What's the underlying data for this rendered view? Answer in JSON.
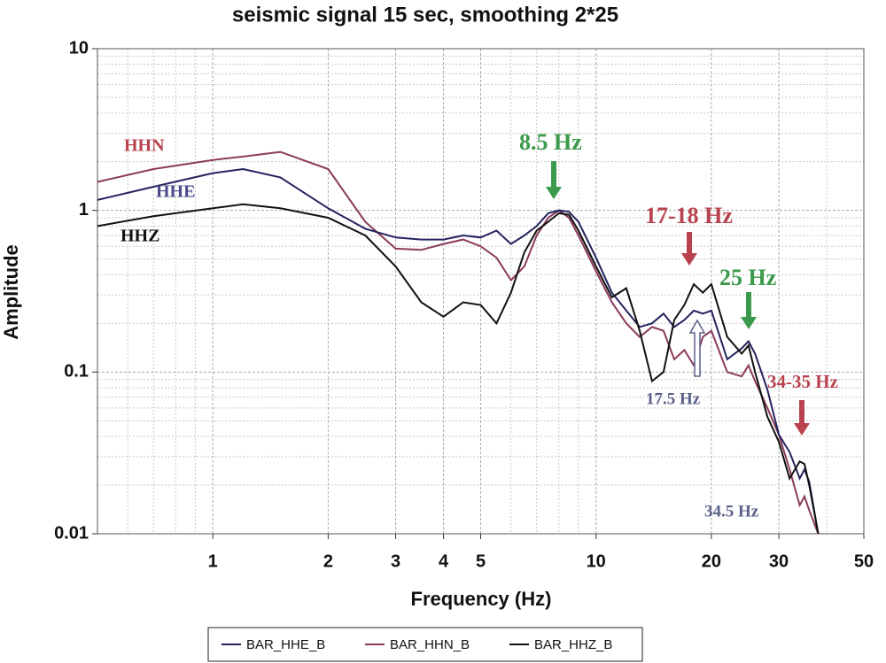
{
  "chart_data": {
    "type": "line",
    "title": "seismic signal 15 sec, smoothing 2*25",
    "xlabel": "Frequency (Hz)",
    "ylabel": "Amplitude",
    "xscale": "log",
    "yscale": "log",
    "grid": true,
    "xlim": [
      0.5,
      50
    ],
    "ylim": [
      0.01,
      10
    ],
    "xticks": [
      1,
      2,
      3,
      4,
      5,
      10,
      20,
      30,
      50
    ],
    "yticks": [
      0.01,
      0.1,
      1,
      10
    ],
    "xminorticks": [
      0.6,
      0.7,
      0.8,
      0.9,
      6,
      7,
      8,
      9,
      40
    ],
    "yminorticks": [
      0.02,
      0.03,
      0.04,
      0.05,
      0.06,
      0.07,
      0.08,
      0.09,
      0.2,
      0.3,
      0.4,
      0.5,
      0.6,
      0.7,
      0.8,
      0.9,
      2,
      3,
      4,
      5,
      6,
      7,
      8,
      9
    ],
    "x": [
      0.5,
      0.7,
      1,
      1.2,
      1.5,
      2,
      2.5,
      3,
      3.5,
      4,
      4.5,
      5,
      5.5,
      6,
      6.5,
      7,
      7.5,
      8,
      8.5,
      9,
      10,
      11,
      12,
      13,
      14,
      15,
      16,
      17,
      18,
      19,
      20,
      22,
      24,
      25,
      26,
      28,
      30,
      32,
      34,
      35,
      36,
      38
    ],
    "series": [
      {
        "name": "BAR_HHE_B",
        "color": "#23235e",
        "values": [
          1.16,
          1.4,
          1.7,
          1.8,
          1.6,
          1.03,
          0.77,
          0.68,
          0.66,
          0.66,
          0.7,
          0.68,
          0.75,
          0.62,
          0.7,
          0.8,
          0.96,
          1.0,
          0.98,
          0.85,
          0.51,
          0.31,
          0.24,
          0.19,
          0.2,
          0.23,
          0.19,
          0.21,
          0.24,
          0.23,
          0.24,
          0.12,
          0.14,
          0.155,
          0.13,
          0.078,
          0.041,
          0.032,
          0.022,
          0.025,
          0.021,
          0.01
        ]
      },
      {
        "name": "BAR_HHN_B",
        "color": "#8b3a5a",
        "values": [
          1.5,
          1.8,
          2.05,
          2.15,
          2.3,
          1.8,
          0.85,
          0.58,
          0.57,
          0.62,
          0.66,
          0.6,
          0.51,
          0.37,
          0.45,
          0.7,
          0.9,
          1.0,
          0.9,
          0.7,
          0.42,
          0.27,
          0.2,
          0.165,
          0.19,
          0.18,
          0.12,
          0.137,
          0.11,
          0.165,
          0.18,
          0.1,
          0.094,
          0.11,
          0.088,
          0.06,
          0.041,
          0.025,
          0.015,
          0.017,
          0.014,
          0.01
        ]
      },
      {
        "name": "BAR_HHZ_B",
        "color": "#111111",
        "values": [
          0.8,
          0.92,
          1.03,
          1.09,
          1.03,
          0.9,
          0.7,
          0.45,
          0.27,
          0.22,
          0.27,
          0.26,
          0.2,
          0.31,
          0.55,
          0.75,
          0.85,
          0.96,
          0.94,
          0.75,
          0.45,
          0.29,
          0.33,
          0.18,
          0.088,
          0.1,
          0.21,
          0.26,
          0.35,
          0.31,
          0.35,
          0.165,
          0.13,
          0.146,
          0.1,
          0.053,
          0.037,
          0.022,
          0.028,
          0.027,
          0.02,
          0.01
        ]
      }
    ],
    "annotations": [
      {
        "text": "HHN",
        "color": "#b8434e"
      },
      {
        "text": "HHE",
        "color": "#4a4a8a"
      },
      {
        "text": "HHZ",
        "color": "#111111"
      },
      {
        "text": "8.5 Hz",
        "color": "#3c9a4c"
      },
      {
        "text": "17-18 Hz",
        "color": "#b8434e"
      },
      {
        "text": "25 Hz",
        "color": "#3c9a4c"
      },
      {
        "text": "34-35 Hz",
        "color": "#b8434e"
      },
      {
        "text": "17.5 Hz",
        "color": "#5a6088"
      },
      {
        "text": "34.5 Hz",
        "color": "#5a6088"
      }
    ]
  }
}
